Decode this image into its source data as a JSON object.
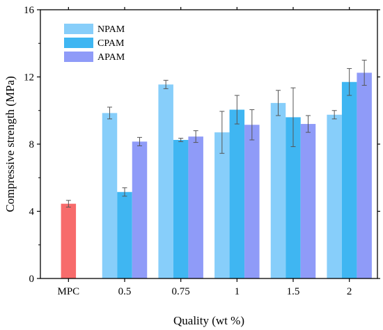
{
  "chart_data": {
    "type": "bar",
    "xlabel": "Quality (wt %)",
    "ylabel": "Compressive strength (MPa)",
    "ylim": [
      0,
      16
    ],
    "yticks": [
      0,
      4,
      8,
      12,
      16
    ],
    "categories": [
      "MPC",
      "0.5",
      "0.75",
      "1",
      "1.5",
      "2"
    ],
    "legend_position": "top-left",
    "series": [
      {
        "name": "NPAM",
        "color": "#87CEFA",
        "values": [
          null,
          9.85,
          11.55,
          8.7,
          10.45,
          9.75
        ],
        "errors": [
          null,
          0.35,
          0.25,
          1.25,
          0.75,
          0.25
        ]
      },
      {
        "name": "CPAM",
        "color": "#3FB6F2",
        "values": [
          null,
          5.15,
          8.25,
          10.05,
          9.6,
          11.7
        ],
        "errors": [
          null,
          0.25,
          0.1,
          0.85,
          1.75,
          0.8
        ]
      },
      {
        "name": "APAM",
        "color": "#8F9BF8",
        "values": [
          null,
          8.15,
          8.45,
          9.15,
          9.2,
          12.25
        ],
        "errors": [
          null,
          0.25,
          0.35,
          0.9,
          0.5,
          0.75
        ]
      },
      {
        "name": "",
        "color": "#F76B6B",
        "values": [
          4.45,
          null,
          null,
          null,
          null,
          null
        ],
        "errors": [
          0.2,
          null,
          null,
          null,
          null,
          null
        ]
      }
    ]
  }
}
